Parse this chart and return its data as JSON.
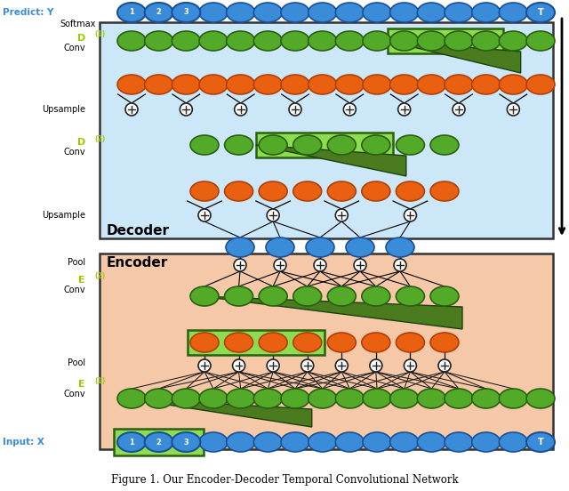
{
  "fig_width": 6.4,
  "fig_height": 5.52,
  "dpi": 100,
  "bg_color": "#ffffff",
  "decoder_bg": "#cce8f8",
  "encoder_bg": "#f5c8a8",
  "light_green_rect": "#8edc50",
  "dark_green_tri": "#4a7c1f",
  "blue_node_color": "#3a8cd8",
  "blue_node_edge": "#1a5098",
  "green_node_color": "#52aa28",
  "green_node_edge": "#2a6010",
  "orange_node_color": "#e86010",
  "orange_node_edge": "#b04008",
  "plus_circle_color": "#ffffff",
  "plus_circle_edge": "#222222",
  "title_text": "Figure 1. Our Encoder-Decoder Temporal Convolutional Network",
  "predict_label": "Predict: Y",
  "input_label": "Input: X",
  "softmax_label": "Softmax",
  "upsample1_label": "Upsample",
  "upsample2_label": "Upsample",
  "pool1_label": "Pool",
  "pool2_label": "Pool",
  "d1_label": "D",
  "d1_sup": "(1)",
  "conv_label": "Conv",
  "d2_label": "D",
  "d2_sup": "(2)",
  "e2_label": "E",
  "e2_sup": "(2)",
  "e1_label": "E",
  "e1_sup": "(1)",
  "decoder_label": "Decoder",
  "encoder_label": "Encoder"
}
